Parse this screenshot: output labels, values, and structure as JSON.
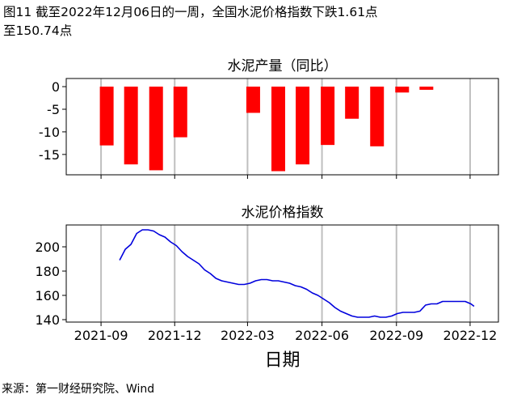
{
  "figure": {
    "title_line1": "图11  截至2022年12月06日的一周，全国水泥价格指数下跌1.61点",
    "title_line2": "至150.74点",
    "source": "来源：第一财经研究院、Wind"
  },
  "chart_data": [
    {
      "type": "bar",
      "title": "水泥产量（同比）",
      "color": "#ff0000",
      "x_ticks": [
        "2021-09",
        "2021-12",
        "2022-03",
        "2022-06",
        "2022-09",
        "2022-12"
      ],
      "ylim": [
        -19.5,
        1.8
      ],
      "y_ticks": [
        0,
        -5,
        -10,
        -15
      ],
      "grid": "vertical",
      "categories": [
        "2021-09",
        "2021-10",
        "2021-11",
        "2021-12",
        "2022-03",
        "2022-04",
        "2022-05",
        "2022-06",
        "2022-07",
        "2022-08",
        "2022-09",
        "2022-10"
      ],
      "values": [
        -13.0,
        -17.2,
        -18.5,
        -11.2,
        -5.8,
        -18.7,
        -17.2,
        -12.9,
        -7.1,
        -13.2,
        -1.3,
        -0.7
      ]
    },
    {
      "type": "line",
      "title": "水泥价格指数",
      "xlabel": "日期",
      "color": "#0000dd",
      "ylim": [
        138,
        218
      ],
      "y_ticks": [
        140,
        160,
        180,
        200
      ],
      "x_ticks": [
        "2021-09",
        "2021-12",
        "2022-03",
        "2022-06",
        "2022-09",
        "2022-12"
      ],
      "grid": "vertical",
      "x": [
        "2021-09-24",
        "2021-10-01",
        "2021-10-08",
        "2021-10-15",
        "2021-10-22",
        "2021-10-29",
        "2021-11-05",
        "2021-11-12",
        "2021-11-19",
        "2021-11-26",
        "2021-12-03",
        "2021-12-10",
        "2021-12-17",
        "2021-12-24",
        "2021-12-31",
        "2022-01-07",
        "2022-01-14",
        "2022-01-21",
        "2022-01-28",
        "2022-02-04",
        "2022-02-11",
        "2022-02-18",
        "2022-02-25",
        "2022-03-04",
        "2022-03-11",
        "2022-03-18",
        "2022-03-25",
        "2022-04-01",
        "2022-04-08",
        "2022-04-15",
        "2022-04-22",
        "2022-04-29",
        "2022-05-06",
        "2022-05-13",
        "2022-05-20",
        "2022-05-27",
        "2022-06-03",
        "2022-06-10",
        "2022-06-17",
        "2022-06-24",
        "2022-07-01",
        "2022-07-08",
        "2022-07-15",
        "2022-07-22",
        "2022-07-29",
        "2022-08-05",
        "2022-08-12",
        "2022-08-19",
        "2022-08-26",
        "2022-09-02",
        "2022-09-09",
        "2022-09-16",
        "2022-09-23",
        "2022-09-30",
        "2022-10-07",
        "2022-10-14",
        "2022-10-21",
        "2022-10-28",
        "2022-11-04",
        "2022-11-11",
        "2022-11-18",
        "2022-11-25",
        "2022-12-02",
        "2022-12-06"
      ],
      "values": [
        189,
        198,
        202,
        211,
        214,
        214,
        213,
        210,
        208,
        204,
        201,
        196,
        192,
        189,
        186,
        181,
        178,
        174,
        172,
        171,
        170,
        169,
        169,
        170,
        172,
        173,
        173,
        172,
        172,
        171,
        170,
        168,
        167,
        165,
        162,
        160,
        157,
        154,
        150,
        147,
        145,
        143,
        142,
        142,
        142,
        143,
        142,
        142,
        143,
        145,
        146,
        146,
        146,
        147,
        152,
        153,
        153,
        155,
        155,
        155,
        155,
        155,
        153,
        151
      ]
    }
  ]
}
